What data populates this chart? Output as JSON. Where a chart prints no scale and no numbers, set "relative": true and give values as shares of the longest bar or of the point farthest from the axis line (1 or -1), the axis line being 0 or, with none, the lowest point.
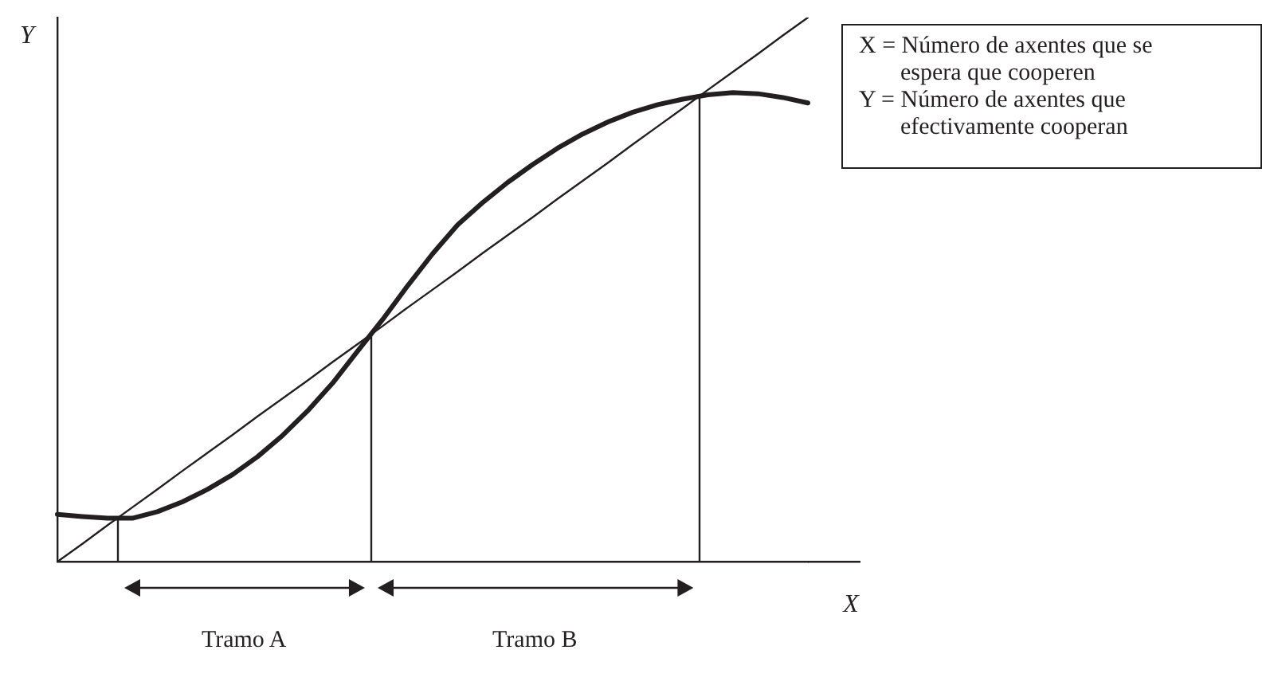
{
  "chart_data": {
    "type": "line",
    "relative": true,
    "xlabel": "X",
    "ylabel": "Y",
    "marker": "none",
    "categories": [
      null,
      null,
      null,
      null,
      null,
      null,
      null,
      null,
      null,
      null,
      null,
      null,
      null,
      null,
      null,
      null,
      null,
      null,
      null,
      null,
      null,
      null,
      null,
      null,
      null,
      null,
      null,
      null,
      null,
      null,
      null
    ],
    "series": [
      {
        "color": "#231f20",
        "values": [
          0.087,
          0.083,
          0.08,
          0.08,
          0.092,
          0.11,
          0.133,
          0.16,
          0.193,
          0.232,
          0.277,
          0.328,
          0.387,
          0.445,
          0.507,
          0.566,
          0.619,
          0.66,
          0.697,
          0.73,
          0.76,
          0.786,
          0.808,
          0.826,
          0.84,
          0.85,
          0.858,
          0.862,
          0.86,
          0.853,
          0.843
        ]
      },
      {
        "color": "#231f20",
        "values": [
          0,
          0.033,
          0.067,
          0.1,
          0.133,
          0.167,
          0.2,
          0.233,
          0.267,
          0.3,
          0.333,
          0.367,
          0.4,
          0.433,
          0.467,
          0.5,
          0.533,
          0.567,
          0.6,
          0.633,
          0.667,
          0.7,
          0.733,
          0.767,
          0.8,
          0.833,
          0.867,
          0.9,
          0.933,
          0.967,
          1
        ]
      }
    ],
    "annotations": [
      "Tramo A",
      "Tramo B",
      "X = Número de axentes que se espera que cooperen",
      "Y = Número de axentes que efectivamente cooperan"
    ]
  }
}
